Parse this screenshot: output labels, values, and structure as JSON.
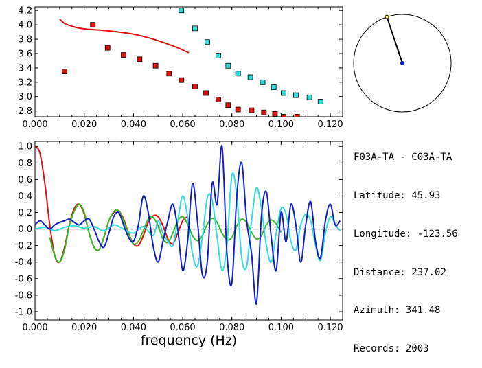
{
  "station_info": {
    "pair": "F03A-TA - C03A-TA",
    "lines": [
      {
        "label": "Latitude:",
        "value": "45.93"
      },
      {
        "label": "Longitude:",
        "value": "-123.56"
      },
      {
        "label": "Distance:",
        "value": "237.02"
      },
      {
        "label": "Azimuth:",
        "value": "341.48"
      },
      {
        "label": "Records:",
        "value": "2003"
      }
    ]
  },
  "azimuth_deg": 341.48,
  "colors": {
    "red": "#dd1010",
    "cyan": "#33dddd",
    "blue": "#1020c0",
    "green": "#33bb22",
    "axis": "#000000"
  },
  "chart_data": [
    {
      "type": "scatter",
      "xlim": [
        0.0,
        0.125
      ],
      "ylim": [
        2.72,
        4.25
      ],
      "xticks": [
        "0.000",
        "0.020",
        "0.040",
        "0.060",
        "0.080",
        "0.100",
        "0.120"
      ],
      "yticks": [
        "2.8",
        "3.0",
        "3.2",
        "3.4",
        "3.6",
        "3.8",
        "4.0",
        "4.2"
      ],
      "series": [
        {
          "color": "red",
          "style": "square",
          "x": [
            0.012,
            0.0235,
            0.0295,
            0.036,
            0.0425,
            0.049,
            0.0545,
            0.0595,
            0.065,
            0.0695,
            0.0745,
            0.0785,
            0.0825,
            0.088,
            0.093,
            0.0975,
            0.101,
            0.1065
          ],
          "y": [
            3.35,
            4.0,
            3.68,
            3.58,
            3.52,
            3.43,
            3.32,
            3.23,
            3.14,
            3.05,
            2.96,
            2.88,
            2.82,
            2.81,
            2.78,
            2.76,
            2.72,
            2.72
          ]
        },
        {
          "color": "cyan",
          "style": "square",
          "x": [
            0.0595,
            0.065,
            0.07,
            0.0745,
            0.0785,
            0.0825,
            0.0875,
            0.0925,
            0.097,
            0.101,
            0.106,
            0.1115,
            0.116
          ],
          "y": [
            4.2,
            3.95,
            3.76,
            3.57,
            3.43,
            3.32,
            3.27,
            3.2,
            3.13,
            3.05,
            3.02,
            2.99,
            2.93
          ]
        },
        {
          "color": "red",
          "style": "line",
          "x": [
            0.01,
            0.012,
            0.015,
            0.018,
            0.021,
            0.025,
            0.03,
            0.035,
            0.04,
            0.045,
            0.05,
            0.055,
            0.058,
            0.06,
            0.0625
          ],
          "y": [
            4.08,
            4.02,
            3.98,
            3.955,
            3.94,
            3.93,
            3.915,
            3.895,
            3.87,
            3.83,
            3.78,
            3.72,
            3.68,
            3.65,
            3.61
          ]
        }
      ]
    },
    {
      "type": "line",
      "xlim": [
        0.0,
        0.125
      ],
      "ylim": [
        -1.1,
        1.06
      ],
      "xticks": [
        "0.000",
        "0.020",
        "0.040",
        "0.060",
        "0.080",
        "0.100",
        "0.120"
      ],
      "yticks": [
        "1.0",
        "0.8",
        "0.6",
        "0.4",
        "0.2",
        "0.0",
        "-0.2",
        "-0.4",
        "-0.6",
        "-0.8",
        "-1.0"
      ],
      "xlabel": "frequency (Hz)",
      "series": [
        {
          "color": "red",
          "x": [
            0.0,
            0.002,
            0.004,
            0.006,
            0.008,
            0.01,
            0.012,
            0.014,
            0.016,
            0.018,
            0.02,
            0.022,
            0.024,
            0.026,
            0.028,
            0.03,
            0.032,
            0.034,
            0.036,
            0.038,
            0.04,
            0.042,
            0.044,
            0.046,
            0.048,
            0.05,
            0.052,
            0.054,
            0.056,
            0.058,
            0.06,
            0.062
          ],
          "y": [
            1.0,
            0.92,
            0.55,
            0.05,
            -0.32,
            -0.4,
            -0.22,
            0.06,
            0.25,
            0.3,
            0.18,
            -0.05,
            -0.22,
            -0.25,
            -0.1,
            0.1,
            0.2,
            0.22,
            0.12,
            -0.05,
            -0.18,
            -0.2,
            -0.08,
            0.08,
            0.16,
            0.15,
            0.04,
            -0.12,
            -0.18,
            -0.05,
            0.1,
            0.15
          ]
        },
        {
          "color": "green",
          "x": [
            0.006,
            0.008,
            0.01,
            0.012,
            0.014,
            0.016,
            0.018,
            0.02,
            0.022,
            0.024,
            0.026,
            0.028,
            0.03,
            0.032,
            0.034,
            0.036,
            0.038,
            0.04,
            0.042,
            0.044,
            0.046,
            0.048,
            0.05,
            0.052,
            0.054,
            0.056,
            0.058,
            0.06,
            0.062,
            0.064,
            0.066,
            0.068,
            0.07,
            0.072,
            0.074,
            0.076,
            0.078,
            0.08,
            0.082,
            0.084,
            0.086,
            0.088,
            0.09,
            0.092,
            0.094,
            0.096,
            0.098,
            0.1
          ],
          "y": [
            -0.1,
            -0.32,
            -0.4,
            -0.25,
            0.05,
            0.22,
            0.3,
            0.2,
            -0.05,
            -0.22,
            -0.25,
            -0.1,
            0.1,
            0.21,
            0.22,
            0.1,
            -0.06,
            -0.18,
            -0.15,
            -0.02,
            0.12,
            0.14,
            0.04,
            -0.12,
            -0.16,
            -0.05,
            0.1,
            0.15,
            0.06,
            -0.08,
            -0.14,
            -0.08,
            0.06,
            0.13,
            0.08,
            -0.05,
            -0.13,
            -0.1,
            0.04,
            0.12,
            0.08,
            -0.04,
            -0.12,
            -0.08,
            0.05,
            0.11,
            0.06,
            -0.04
          ]
        },
        {
          "color": "cyan",
          "x": [
            0.0,
            0.004,
            0.008,
            0.012,
            0.016,
            0.02,
            0.024,
            0.028,
            0.032,
            0.036,
            0.04,
            0.044,
            0.048,
            0.05,
            0.052,
            0.054,
            0.056,
            0.058,
            0.06,
            0.062,
            0.064,
            0.066,
            0.068,
            0.07,
            0.072,
            0.074,
            0.076,
            0.078,
            0.08,
            0.082,
            0.084,
            0.086,
            0.088,
            0.09,
            0.092,
            0.094,
            0.096,
            0.098,
            0.1,
            0.102,
            0.104,
            0.106,
            0.108,
            0.11,
            0.112,
            0.114,
            0.116,
            0.118,
            0.12,
            0.122,
            0.124
          ],
          "y": [
            0.0,
            0.02,
            -0.02,
            0.02,
            0.04,
            0.01,
            0.03,
            -0.02,
            0.05,
            0.0,
            -0.05,
            0.03,
            -0.08,
            0.1,
            -0.05,
            -0.15,
            -0.2,
            0.1,
            0.4,
            0.15,
            -0.3,
            -0.45,
            -0.1,
            0.38,
            0.35,
            -0.1,
            -0.5,
            -0.2,
            0.65,
            0.4,
            -0.35,
            -0.45,
            0.1,
            0.5,
            0.25,
            -0.2,
            -0.4,
            -0.05,
            0.25,
            0.18,
            -0.15,
            -0.25,
            0.05,
            0.18,
            0.1,
            -0.2,
            -0.38,
            -0.05,
            0.15,
            0.05,
            -0.02
          ]
        },
        {
          "color": "blue",
          "x": [
            0.0,
            0.002,
            0.004,
            0.006,
            0.008,
            0.01,
            0.012,
            0.014,
            0.016,
            0.018,
            0.02,
            0.022,
            0.024,
            0.026,
            0.028,
            0.03,
            0.032,
            0.034,
            0.036,
            0.038,
            0.04,
            0.042,
            0.044,
            0.046,
            0.048,
            0.05,
            0.052,
            0.054,
            0.056,
            0.058,
            0.06,
            0.062,
            0.064,
            0.066,
            0.068,
            0.07,
            0.072,
            0.074,
            0.076,
            0.078,
            0.08,
            0.082,
            0.084,
            0.086,
            0.088,
            0.09,
            0.092,
            0.094,
            0.096,
            0.098,
            0.1,
            0.102,
            0.104,
            0.106,
            0.108,
            0.11,
            0.112,
            0.114,
            0.116,
            0.118,
            0.12,
            0.122,
            0.124
          ],
          "y": [
            0.05,
            0.1,
            0.05,
            0.0,
            0.05,
            0.08,
            0.1,
            0.12,
            0.08,
            0.05,
            0.1,
            0.12,
            0.0,
            -0.15,
            -0.22,
            -0.05,
            0.15,
            0.2,
            0.05,
            -0.1,
            -0.15,
            0.05,
            0.4,
            0.2,
            -0.2,
            -0.4,
            -0.15,
            0.1,
            0.3,
            0.0,
            -0.5,
            -0.15,
            0.55,
            0.1,
            -0.55,
            -0.4,
            0.55,
            0.3,
            1.0,
            -0.3,
            -0.65,
            0.4,
            0.8,
            0.1,
            -0.3,
            -0.9,
            0.15,
            0.45,
            -0.1,
            -0.5,
            0.2,
            -0.15,
            0.3,
            0.05,
            -0.4,
            0.05,
            0.33,
            -0.15,
            -0.35,
            0.1,
            0.3,
            0.05,
            0.1
          ]
        }
      ]
    }
  ]
}
